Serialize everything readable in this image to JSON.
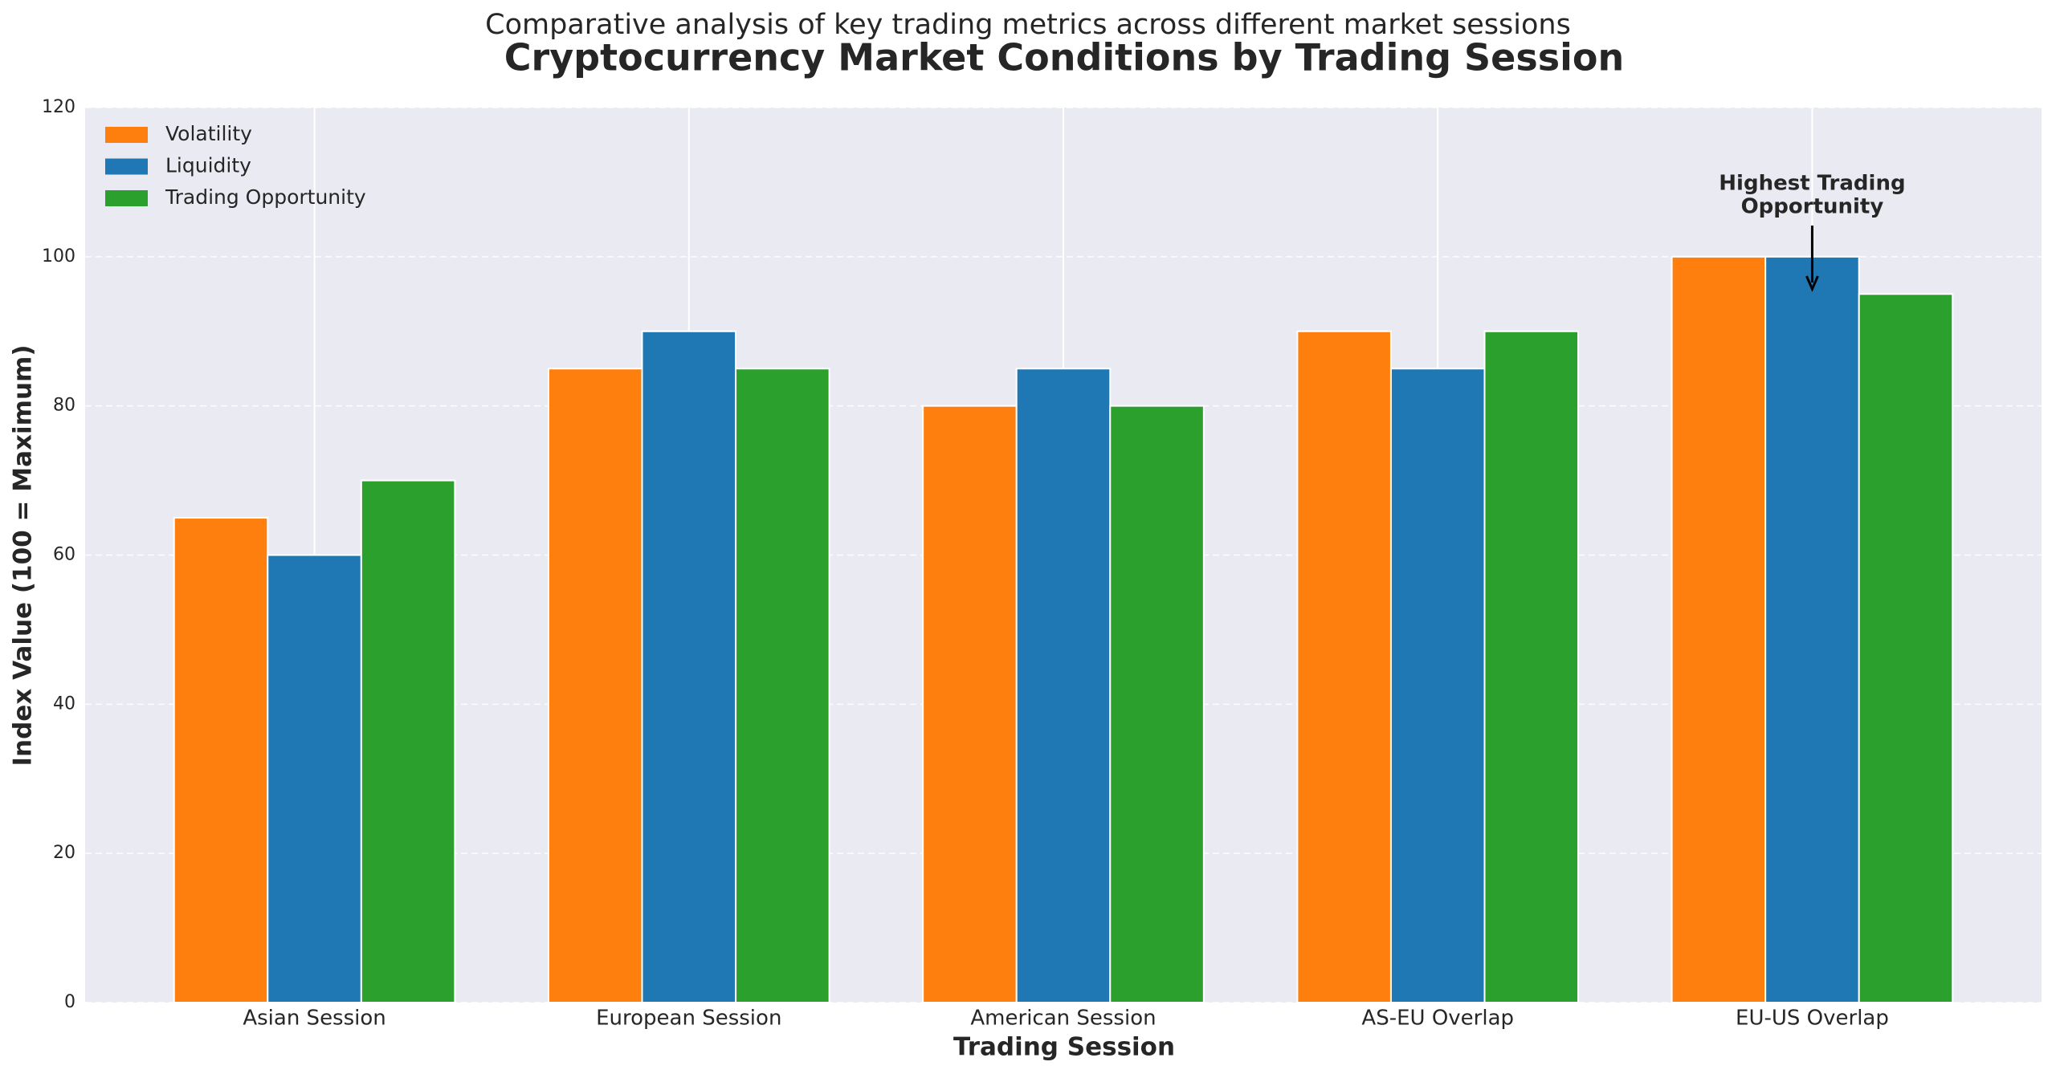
{
  "chart_data": {
    "type": "bar",
    "subtitle": "Comparative analysis of key trading metrics across different market sessions",
    "title": "Cryptocurrency Market Conditions by Trading Session",
    "x_label": "Trading Session",
    "y_label": "Index Value (100 = Maximum)",
    "categories": [
      "Asian Session",
      "European Session",
      "American Session",
      "AS-EU Overlap",
      "EU-US Overlap"
    ],
    "series": [
      {
        "name": "Volatility",
        "color": "#ff7f0e",
        "values": [
          65,
          85,
          80,
          90,
          100
        ]
      },
      {
        "name": "Liquidity",
        "color": "#1f77b4",
        "values": [
          60,
          90,
          85,
          85,
          100
        ]
      },
      {
        "name": "Trading Opportunity",
        "color": "#2ca02c",
        "values": [
          70,
          85,
          80,
          90,
          95
        ]
      }
    ],
    "ylim": [
      0,
      120
    ],
    "yticks": [
      0,
      20,
      40,
      60,
      80,
      100,
      120
    ],
    "grid": true,
    "legend": "upper-left",
    "annotation": {
      "lines": [
        "Highest Trading",
        "Opportunity"
      ]
    }
  }
}
